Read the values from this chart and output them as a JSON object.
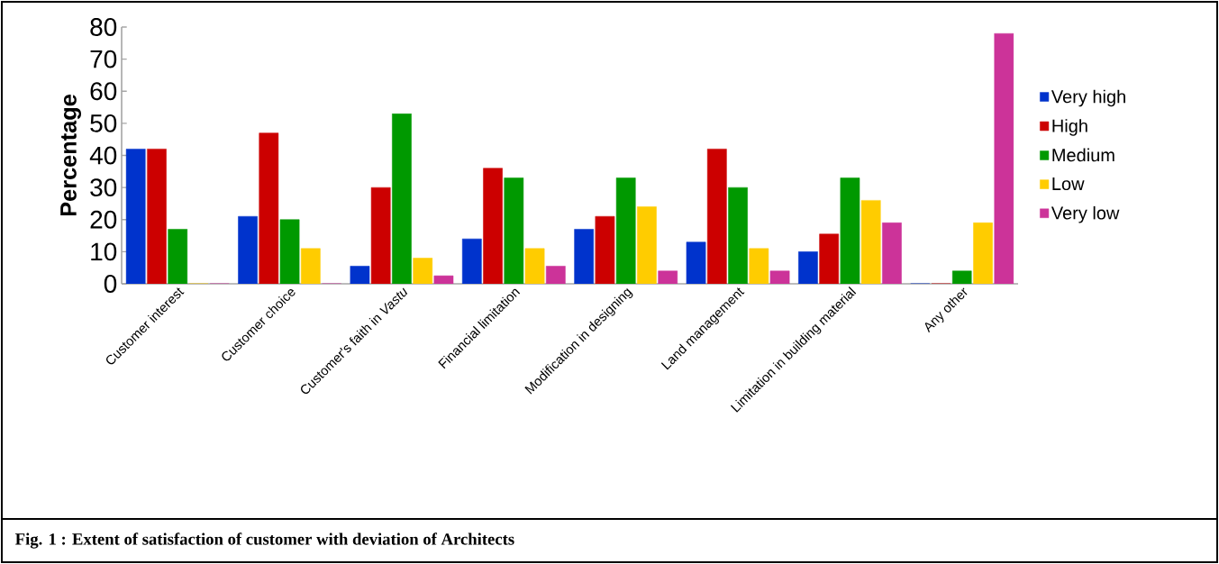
{
  "chart_data": {
    "type": "bar",
    "ylabel": "Percentage",
    "categories": [
      "Customer interest",
      "Customer choice",
      "Customer's faith in *Vastu*",
      "Financial limitation",
      "Modification in designing",
      "Land management",
      "Limitation in building material",
      "Any other"
    ],
    "series": [
      {
        "name": "Very high",
        "color": "#0033cc",
        "values": [
          42,
          21,
          5.5,
          14,
          17,
          13,
          10,
          0
        ]
      },
      {
        "name": "High",
        "color": "#cc0000",
        "values": [
          42,
          47,
          30,
          36,
          21,
          42,
          15.5,
          0
        ]
      },
      {
        "name": "Medium",
        "color": "#009900",
        "values": [
          17,
          20,
          53,
          33,
          33,
          30,
          33,
          4
        ]
      },
      {
        "name": "Low",
        "color": "#ffcc00",
        "values": [
          0,
          11,
          8,
          11,
          24,
          11,
          26,
          19
        ]
      },
      {
        "name": "Very low",
        "color": "#cc3399",
        "values": [
          0,
          0,
          2.5,
          5.5,
          4,
          4,
          19,
          78
        ]
      }
    ],
    "ylim": [
      0,
      80
    ],
    "yticks": [
      0,
      10,
      20,
      30,
      40,
      50,
      60,
      70,
      80
    ],
    "legend": "right",
    "grid": false,
    "annotations": [
      "Fig. 1 :    Extent of satisfaction of customer with deviation of Architects"
    ]
  }
}
